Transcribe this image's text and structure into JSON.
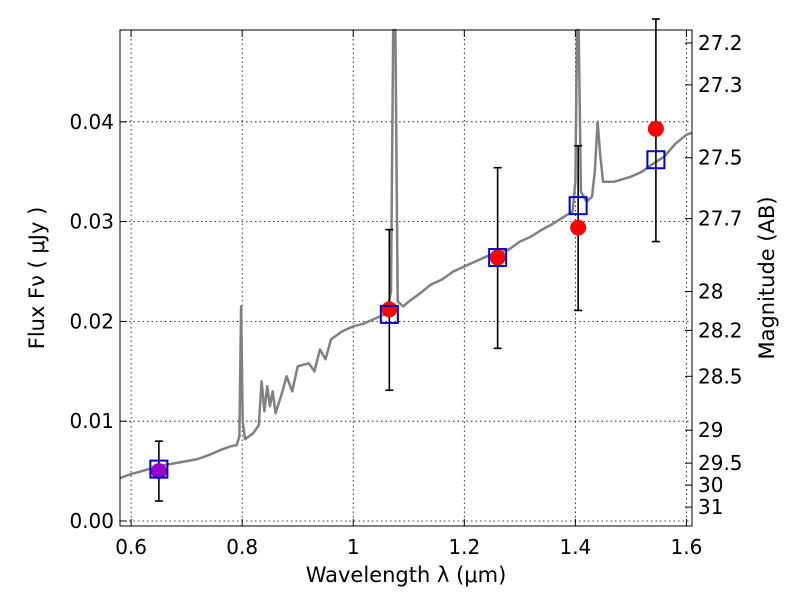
{
  "chart_data": {
    "type": "scatter",
    "xlabel": "Wavelength  λ (μm)",
    "ylabel": "Flux  Fν  ( μJy )",
    "y2label": "Magnitude (AB)",
    "xlim": [
      0.58,
      1.61
    ],
    "ylim": [
      -0.0005,
      0.0492
    ],
    "grid": true,
    "x_ticks": [
      {
        "value": 0.6,
        "label": "0.6"
      },
      {
        "value": 0.8,
        "label": "0.8"
      },
      {
        "value": 1.0,
        "label": "1"
      },
      {
        "value": 1.2,
        "label": "1.2"
      },
      {
        "value": 1.4,
        "label": "1.4"
      },
      {
        "value": 1.6,
        "label": "1.6"
      }
    ],
    "y_ticks": [
      {
        "value": 0.0,
        "label": "0.00"
      },
      {
        "value": 0.01,
        "label": "0.01"
      },
      {
        "value": 0.02,
        "label": "0.02"
      },
      {
        "value": 0.03,
        "label": "0.03"
      },
      {
        "value": 0.04,
        "label": "0.04"
      }
    ],
    "y2_ticks": [
      {
        "label": "27.2",
        "flux": 0.0479
      },
      {
        "label": "27.3",
        "flux": 0.0437
      },
      {
        "label": "27.5",
        "flux": 0.0364
      },
      {
        "label": "27.7",
        "flux": 0.0303
      },
      {
        "label": "28",
        "flux": 0.023
      },
      {
        "label": "28.2",
        "flux": 0.0191
      },
      {
        "label": "28.5",
        "flux": 0.0145
      },
      {
        "label": "29",
        "flux": 0.0091
      },
      {
        "label": "29.5",
        "flux": 0.0058
      },
      {
        "label": "30",
        "flux": 0.0036
      },
      {
        "label": "31",
        "flux": 0.0014
      }
    ],
    "model_spectrum": {
      "color": "#808080",
      "points": [
        [
          0.58,
          0.0043
        ],
        [
          0.6,
          0.0047
        ],
        [
          0.62,
          0.005
        ],
        [
          0.65,
          0.0055
        ],
        [
          0.68,
          0.0058
        ],
        [
          0.7,
          0.006
        ],
        [
          0.72,
          0.0062
        ],
        [
          0.74,
          0.0066
        ],
        [
          0.76,
          0.0071
        ],
        [
          0.78,
          0.0075
        ],
        [
          0.79,
          0.0076
        ],
        [
          0.795,
          0.0085
        ],
        [
          0.798,
          0.0215
        ],
        [
          0.801,
          0.01
        ],
        [
          0.805,
          0.0082
        ],
        [
          0.82,
          0.0088
        ],
        [
          0.83,
          0.0096
        ],
        [
          0.835,
          0.014
        ],
        [
          0.84,
          0.011
        ],
        [
          0.845,
          0.0135
        ],
        [
          0.85,
          0.0115
        ],
        [
          0.855,
          0.013
        ],
        [
          0.86,
          0.0108
        ],
        [
          0.87,
          0.0125
        ],
        [
          0.88,
          0.0145
        ],
        [
          0.89,
          0.013
        ],
        [
          0.9,
          0.0155
        ],
        [
          0.92,
          0.0158
        ],
        [
          0.93,
          0.015
        ],
        [
          0.94,
          0.0172
        ],
        [
          0.95,
          0.0162
        ],
        [
          0.96,
          0.0182
        ],
        [
          0.98,
          0.019
        ],
        [
          1.0,
          0.0195
        ],
        [
          1.02,
          0.0198
        ],
        [
          1.04,
          0.0203
        ],
        [
          1.06,
          0.0208
        ],
        [
          1.068,
          0.023
        ],
        [
          1.072,
          0.0492
        ],
        [
          1.076,
          0.0492
        ],
        [
          1.08,
          0.022
        ],
        [
          1.09,
          0.0215
        ],
        [
          1.1,
          0.022
        ],
        [
          1.12,
          0.0228
        ],
        [
          1.14,
          0.0237
        ],
        [
          1.16,
          0.0242
        ],
        [
          1.18,
          0.025
        ],
        [
          1.2,
          0.0255
        ],
        [
          1.22,
          0.026
        ],
        [
          1.24,
          0.0265
        ],
        [
          1.26,
          0.0268
        ],
        [
          1.28,
          0.0272
        ],
        [
          1.3,
          0.028
        ],
        [
          1.32,
          0.0285
        ],
        [
          1.34,
          0.0292
        ],
        [
          1.36,
          0.0298
        ],
        [
          1.38,
          0.0305
        ],
        [
          1.395,
          0.031
        ],
        [
          1.4,
          0.034
        ],
        [
          1.403,
          0.0492
        ],
        [
          1.406,
          0.0492
        ],
        [
          1.41,
          0.033
        ],
        [
          1.42,
          0.032
        ],
        [
          1.43,
          0.0325
        ],
        [
          1.435,
          0.035
        ],
        [
          1.44,
          0.04
        ],
        [
          1.445,
          0.0365
        ],
        [
          1.45,
          0.034
        ],
        [
          1.47,
          0.034
        ],
        [
          1.5,
          0.0345
        ],
        [
          1.52,
          0.035
        ],
        [
          1.54,
          0.0358
        ],
        [
          1.56,
          0.0365
        ],
        [
          1.58,
          0.0378
        ],
        [
          1.6,
          0.0387
        ],
        [
          1.61,
          0.0389
        ]
      ]
    },
    "series": [
      {
        "marker": "open-square",
        "color": "#0000cc",
        "points": [
          {
            "x": 0.65,
            "y": 0.0052
          },
          {
            "x": 1.065,
            "y": 0.0207
          },
          {
            "x": 1.26,
            "y": 0.0264
          },
          {
            "x": 1.405,
            "y": 0.0316
          },
          {
            "x": 1.545,
            "y": 0.0362
          }
        ]
      },
      {
        "marker": "filled-circle",
        "color": "#ff0000",
        "points": [
          {
            "x": 0.65,
            "y": 0.005,
            "yerr": [
              0.003,
              0.003
            ],
            "color": "#9900cc"
          },
          {
            "x": 1.065,
            "y": 0.0212,
            "yerr": [
              0.0081,
              0.008
            ]
          },
          {
            "x": 1.26,
            "y": 0.0264,
            "yerr": [
              0.0091,
              0.009
            ]
          },
          {
            "x": 1.405,
            "y": 0.0294,
            "yerr": [
              0.0083,
              0.0082
            ]
          },
          {
            "x": 1.545,
            "y": 0.0393,
            "yerr": [
              0.0113,
              0.011
            ]
          }
        ]
      }
    ]
  }
}
